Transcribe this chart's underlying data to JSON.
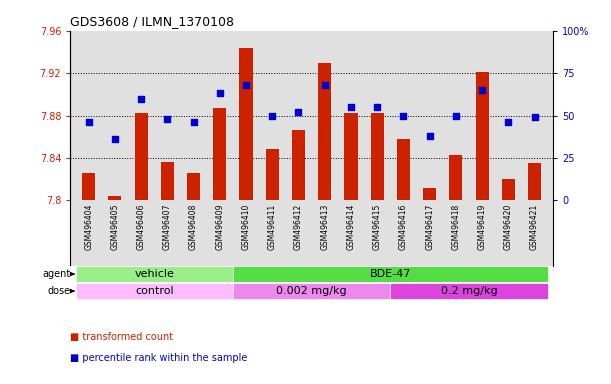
{
  "title": "GDS3608 / ILMN_1370108",
  "samples": [
    "GSM496404",
    "GSM496405",
    "GSM496406",
    "GSM496407",
    "GSM496408",
    "GSM496409",
    "GSM496410",
    "GSM496411",
    "GSM496412",
    "GSM496413",
    "GSM496414",
    "GSM496415",
    "GSM496416",
    "GSM496417",
    "GSM496418",
    "GSM496419",
    "GSM496420",
    "GSM496421"
  ],
  "transformed_count": [
    7.826,
    7.804,
    7.882,
    7.836,
    7.826,
    7.887,
    7.944,
    7.848,
    7.866,
    7.93,
    7.882,
    7.882,
    7.858,
    7.812,
    7.843,
    7.921,
    7.82,
    7.835
  ],
  "percentile_rank": [
    46,
    36,
    60,
    48,
    46,
    63,
    68,
    50,
    52,
    68,
    55,
    55,
    50,
    38,
    50,
    65,
    46,
    49
  ],
  "ylim_left": [
    7.8,
    7.96
  ],
  "ylim_right": [
    0,
    100
  ],
  "yticks_left": [
    7.8,
    7.84,
    7.88,
    7.92,
    7.96
  ],
  "ytick_labels_left": [
    "7.8",
    "7.84",
    "7.88",
    "7.92",
    "7.96"
  ],
  "yticks_right": [
    0,
    25,
    50,
    75,
    100
  ],
  "ytick_labels_right": [
    "0",
    "25",
    "50",
    "75",
    "100%"
  ],
  "bar_color": "#cc2200",
  "dot_color": "#0000cc",
  "grid_color": "#000000",
  "bg_color": "#e0e0e0",
  "agent_groups": [
    {
      "label": "vehicle",
      "start": 0,
      "end": 6,
      "color": "#99ee88"
    },
    {
      "label": "BDE-47",
      "start": 6,
      "end": 18,
      "color": "#55dd44"
    }
  ],
  "dose_groups": [
    {
      "label": "control",
      "start": 0,
      "end": 6,
      "color": "#ffbbff"
    },
    {
      "label": "0.002 mg/kg",
      "start": 6,
      "end": 12,
      "color": "#ee88ee"
    },
    {
      "label": "0.2 mg/kg",
      "start": 12,
      "end": 18,
      "color": "#dd44dd"
    }
  ],
  "legend_items": [
    {
      "label": "transformed count",
      "color": "#cc2200"
    },
    {
      "label": "percentile rank within the sample",
      "color": "#0000cc"
    }
  ],
  "ylabel_left_color": "#cc2200",
  "ylabel_right_color": "#0000cc"
}
